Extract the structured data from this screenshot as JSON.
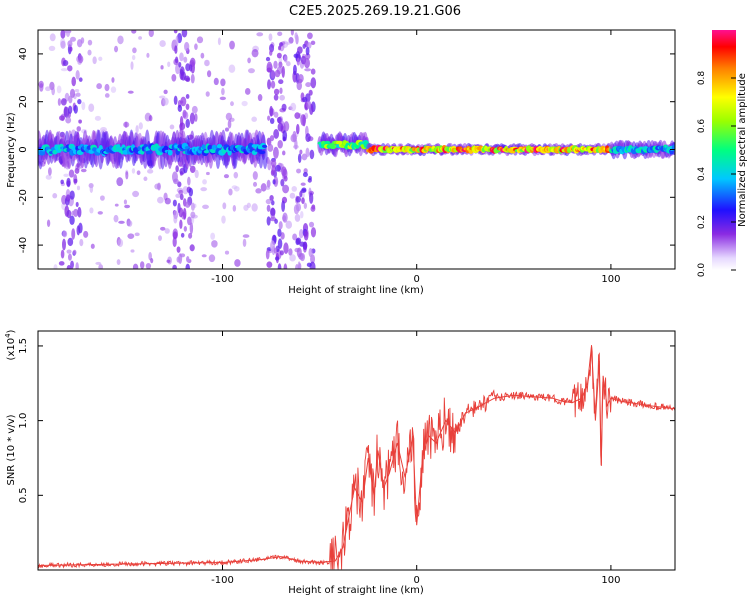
{
  "title": "C2E5.2025.269.19.21.G06",
  "chart_data": [
    {
      "type": "heatmap",
      "xlabel": "Height of straight line (km)",
      "ylabel": "Frequency (Hz)",
      "xlim": [
        -195,
        133
      ],
      "ylim": [
        -50,
        50
      ],
      "xticks": [
        -100,
        0,
        100
      ],
      "xtick_labels": [
        "-100",
        "0",
        "100"
      ],
      "yticks": [
        -40,
        -20,
        0,
        20,
        40
      ],
      "ytick_labels": [
        "-40",
        "-20",
        "0",
        "20",
        "40"
      ],
      "colorbar": {
        "label": "Normalized spectral amplitude",
        "range": [
          0,
          1
        ],
        "ticks": [
          0.0,
          0.2,
          0.4,
          0.6,
          0.8
        ],
        "tick_labels": [
          "0.0",
          "0.2",
          "0.4",
          "0.6",
          "0.8"
        ]
      },
      "band_segments": [
        {
          "x_start": -195,
          "x_end": -78,
          "center_hz": 0,
          "spread_hz": 6,
          "peak_amplitude": 0.45
        },
        {
          "x_start": -50,
          "x_end": -25,
          "center_hz": 2,
          "spread_hz": 4,
          "peak_amplitude": 0.7
        },
        {
          "x_start": -25,
          "x_end": 100,
          "center_hz": 0,
          "spread_hz": 2,
          "peak_amplitude": 1.0
        },
        {
          "x_start": 100,
          "x_end": 133,
          "center_hz": 0,
          "spread_hz": 3,
          "peak_amplitude": 0.5
        }
      ],
      "noise_columns_km": [
        -178,
        -120,
        -72,
        -58
      ]
    },
    {
      "type": "line",
      "xlabel": "Height of straight line (km)",
      "ylabel": "SNR (10 * v/v)",
      "scale_label": "(x10",
      "scale_exponent": "4",
      "scale_suffix": ")",
      "xlim": [
        -195,
        133
      ],
      "ylim": [
        0,
        1.6
      ],
      "xticks": [
        -100,
        0,
        100
      ],
      "xtick_labels": [
        "-100",
        "0",
        "100"
      ],
      "yticks": [
        0.5,
        1.0,
        1.5
      ],
      "ytick_labels": [
        "0.5",
        "1.0",
        "1.5"
      ],
      "color": "#e8403a",
      "series": [
        {
          "name": "SNR",
          "x": [
            -195,
            -150,
            -100,
            -80,
            -70,
            -60,
            -50,
            -42,
            -38,
            -35,
            -32,
            -28,
            -25,
            -22,
            -20,
            -17,
            -14,
            -10,
            -6,
            -2,
            0,
            3,
            6,
            10,
            15,
            20,
            25,
            30,
            40,
            50,
            60,
            70,
            75,
            80,
            85,
            88,
            90,
            92,
            94,
            95,
            96,
            98,
            100,
            105,
            110,
            120,
            133
          ],
          "y": [
            0.03,
            0.04,
            0.05,
            0.07,
            0.09,
            0.06,
            0.05,
            0.06,
            0.15,
            0.35,
            0.55,
            0.45,
            0.75,
            0.5,
            0.8,
            0.55,
            0.65,
            0.85,
            0.62,
            0.9,
            0.3,
            0.75,
            0.9,
            0.85,
            1.0,
            0.92,
            1.05,
            1.08,
            1.15,
            1.17,
            1.16,
            1.15,
            1.13,
            1.12,
            1.15,
            1.25,
            1.5,
            1.0,
            1.4,
            0.7,
            1.3,
            1.1,
            1.15,
            1.13,
            1.12,
            1.1,
            1.08
          ]
        }
      ]
    }
  ]
}
